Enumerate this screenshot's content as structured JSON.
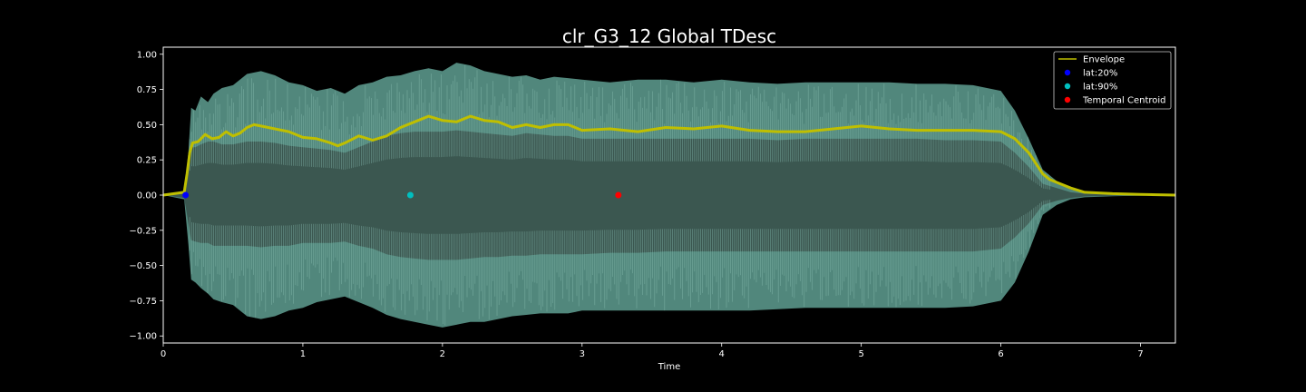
{
  "chart_data": {
    "type": "line",
    "title": "clr_G3_12 Global TDesc",
    "xlabel": "Time",
    "ylabel": "",
    "xlim": [
      0,
      7.25
    ],
    "ylim": [
      -1.05,
      1.05
    ],
    "xticks": [
      0,
      1,
      2,
      3,
      4,
      5,
      6,
      7
    ],
    "yticks": [
      -1.0,
      -0.75,
      -0.5,
      -0.25,
      0.0,
      0.25,
      0.5,
      0.75,
      1.0
    ],
    "ytick_labels": [
      "−1.00",
      "−0.75",
      "−0.50",
      "−0.25",
      "0.00",
      "0.25",
      "0.50",
      "0.75",
      "1.00"
    ],
    "grid": false,
    "legend_position": "top-right",
    "waveform": {
      "color": "#5f9f92",
      "fill_color": "#3b5750",
      "x": [
        0,
        0.15,
        0.18,
        0.2,
        0.23,
        0.27,
        0.32,
        0.36,
        0.42,
        0.5,
        0.6,
        0.7,
        0.8,
        0.9,
        1.0,
        1.1,
        1.2,
        1.3,
        1.4,
        1.5,
        1.6,
        1.7,
        1.8,
        1.9,
        2.0,
        2.1,
        2.2,
        2.3,
        2.4,
        2.5,
        2.6,
        2.7,
        2.8,
        2.9,
        3.0,
        3.2,
        3.4,
        3.6,
        3.8,
        4.0,
        4.2,
        4.4,
        4.6,
        4.8,
        5.0,
        5.2,
        5.4,
        5.6,
        5.8,
        6.0,
        6.1,
        6.2,
        6.3,
        6.4,
        6.5,
        6.6,
        6.8,
        7.0,
        7.25
      ],
      "upper": [
        0.0,
        0.03,
        0.3,
        0.62,
        0.6,
        0.7,
        0.66,
        0.72,
        0.76,
        0.78,
        0.86,
        0.88,
        0.85,
        0.8,
        0.78,
        0.74,
        0.76,
        0.72,
        0.78,
        0.8,
        0.84,
        0.85,
        0.88,
        0.9,
        0.88,
        0.94,
        0.92,
        0.88,
        0.86,
        0.84,
        0.85,
        0.82,
        0.84,
        0.83,
        0.82,
        0.8,
        0.82,
        0.82,
        0.8,
        0.82,
        0.8,
        0.79,
        0.8,
        0.8,
        0.8,
        0.8,
        0.79,
        0.79,
        0.78,
        0.74,
        0.6,
        0.4,
        0.18,
        0.1,
        0.04,
        0.02,
        0.01,
        0.005,
        0.0
      ],
      "lower": [
        0.0,
        -0.03,
        -0.35,
        -0.6,
        -0.62,
        -0.66,
        -0.7,
        -0.74,
        -0.76,
        -0.78,
        -0.86,
        -0.88,
        -0.86,
        -0.82,
        -0.8,
        -0.76,
        -0.74,
        -0.72,
        -0.76,
        -0.8,
        -0.85,
        -0.88,
        -0.9,
        -0.92,
        -0.94,
        -0.92,
        -0.9,
        -0.9,
        -0.88,
        -0.86,
        -0.85,
        -0.84,
        -0.84,
        -0.84,
        -0.82,
        -0.82,
        -0.82,
        -0.82,
        -0.82,
        -0.82,
        -0.82,
        -0.81,
        -0.8,
        -0.8,
        -0.8,
        -0.8,
        -0.8,
        -0.8,
        -0.79,
        -0.75,
        -0.62,
        -0.4,
        -0.14,
        -0.07,
        -0.03,
        -0.015,
        -0.008,
        -0.004,
        0.0
      ],
      "core_upper": [
        0.0,
        0.02,
        0.24,
        0.34,
        0.34,
        0.36,
        0.38,
        0.38,
        0.36,
        0.36,
        0.38,
        0.38,
        0.37,
        0.35,
        0.34,
        0.33,
        0.32,
        0.3,
        0.34,
        0.38,
        0.42,
        0.44,
        0.45,
        0.45,
        0.45,
        0.46,
        0.45,
        0.44,
        0.43,
        0.42,
        0.44,
        0.43,
        0.42,
        0.42,
        0.4,
        0.4,
        0.4,
        0.4,
        0.4,
        0.4,
        0.4,
        0.39,
        0.4,
        0.4,
        0.4,
        0.4,
        0.4,
        0.39,
        0.39,
        0.38,
        0.3,
        0.2,
        0.08,
        0.05,
        0.02,
        0.01,
        0.005,
        0.003,
        0.0
      ],
      "core_lower": [
        0.0,
        -0.02,
        -0.2,
        -0.32,
        -0.33,
        -0.34,
        -0.34,
        -0.36,
        -0.36,
        -0.36,
        -0.36,
        -0.37,
        -0.36,
        -0.36,
        -0.34,
        -0.34,
        -0.34,
        -0.33,
        -0.36,
        -0.38,
        -0.42,
        -0.44,
        -0.45,
        -0.46,
        -0.46,
        -0.46,
        -0.45,
        -0.44,
        -0.44,
        -0.43,
        -0.43,
        -0.42,
        -0.42,
        -0.42,
        -0.42,
        -0.41,
        -0.41,
        -0.4,
        -0.4,
        -0.4,
        -0.4,
        -0.4,
        -0.4,
        -0.4,
        -0.4,
        -0.4,
        -0.4,
        -0.4,
        -0.4,
        -0.38,
        -0.3,
        -0.2,
        -0.07,
        -0.04,
        -0.02,
        -0.01,
        -0.005,
        -0.003,
        0.0
      ]
    },
    "series": [
      {
        "name": "Envelope",
        "type": "line",
        "color": "#bfbf00",
        "x": [
          0,
          0.15,
          0.17,
          0.19,
          0.21,
          0.25,
          0.3,
          0.35,
          0.4,
          0.45,
          0.5,
          0.55,
          0.6,
          0.65,
          0.7,
          0.8,
          0.9,
          1.0,
          1.1,
          1.2,
          1.25,
          1.3,
          1.4,
          1.5,
          1.6,
          1.7,
          1.8,
          1.9,
          2.0,
          2.1,
          2.2,
          2.3,
          2.4,
          2.5,
          2.6,
          2.7,
          2.8,
          2.9,
          3.0,
          3.2,
          3.4,
          3.6,
          3.8,
          4.0,
          4.2,
          4.4,
          4.6,
          4.8,
          5.0,
          5.2,
          5.4,
          5.6,
          5.8,
          6.0,
          6.1,
          6.2,
          6.3,
          6.35,
          6.4,
          6.5,
          6.6,
          6.8,
          7.0,
          7.25
        ],
        "y": [
          0.0,
          0.02,
          0.15,
          0.3,
          0.37,
          0.38,
          0.43,
          0.4,
          0.41,
          0.45,
          0.42,
          0.44,
          0.48,
          0.5,
          0.49,
          0.47,
          0.45,
          0.41,
          0.4,
          0.37,
          0.35,
          0.37,
          0.42,
          0.39,
          0.42,
          0.48,
          0.52,
          0.56,
          0.53,
          0.52,
          0.56,
          0.53,
          0.52,
          0.48,
          0.5,
          0.48,
          0.5,
          0.5,
          0.46,
          0.47,
          0.45,
          0.48,
          0.47,
          0.49,
          0.46,
          0.45,
          0.45,
          0.47,
          0.49,
          0.47,
          0.46,
          0.46,
          0.46,
          0.45,
          0.4,
          0.3,
          0.15,
          0.11,
          0.09,
          0.05,
          0.02,
          0.01,
          0.005,
          0.0
        ]
      },
      {
        "name": "lat:20%",
        "type": "scatter",
        "color": "#0000ff",
        "x": [
          0.16
        ],
        "y": [
          0.0
        ]
      },
      {
        "name": "lat:90%",
        "type": "scatter",
        "color": "#00bfbf",
        "x": [
          1.77
        ],
        "y": [
          0.0
        ]
      },
      {
        "name": "Temporal Centroid",
        "type": "scatter",
        "color": "#ff0000",
        "x": [
          3.26
        ],
        "y": [
          0.0
        ]
      }
    ]
  }
}
